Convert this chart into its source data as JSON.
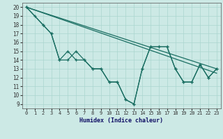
{
  "xlabel": "Humidex (Indice chaleur)",
  "background_color": "#cce9e5",
  "grid_color": "#aad5cf",
  "line_color": "#1a6e62",
  "xlim": [
    -0.5,
    23.5
  ],
  "ylim": [
    8.5,
    20.5
  ],
  "xticks": [
    0,
    1,
    2,
    3,
    4,
    5,
    6,
    7,
    8,
    9,
    10,
    11,
    12,
    13,
    14,
    15,
    16,
    17,
    18,
    19,
    20,
    21,
    22,
    23
  ],
  "yticks": [
    9,
    10,
    11,
    12,
    13,
    14,
    15,
    16,
    17,
    18,
    19,
    20
  ],
  "line1_x": [
    0,
    23
  ],
  "line1_y": [
    20.0,
    13.0
  ],
  "line2_x": [
    0,
    23
  ],
  "line2_y": [
    20.0,
    12.5
  ],
  "line3_x": [
    0,
    1,
    2,
    3,
    4,
    5,
    6,
    7,
    8,
    9,
    10,
    11,
    12,
    13,
    14,
    15,
    16,
    17,
    18,
    19,
    20,
    21,
    22,
    23
  ],
  "line3_y": [
    20,
    19,
    18,
    17,
    14,
    14,
    15,
    14,
    13,
    13,
    11.5,
    11.5,
    9.5,
    9.0,
    13.0,
    15.5,
    15.5,
    15.5,
    13.0,
    11.5,
    11.5,
    13.5,
    12.0,
    13.0
  ],
  "line4_x": [
    0,
    2,
    3,
    4,
    5,
    6,
    7,
    8,
    9,
    10,
    11,
    12,
    13,
    14,
    15,
    16,
    17,
    18,
    19,
    20,
    21,
    22,
    23
  ],
  "line4_y": [
    20,
    18,
    17,
    14,
    15,
    14,
    14,
    13,
    13,
    11.5,
    11.5,
    9.5,
    9.0,
    13.0,
    15.5,
    15.5,
    15.5,
    13.0,
    11.5,
    11.5,
    13.5,
    12.0,
    13.0
  ]
}
